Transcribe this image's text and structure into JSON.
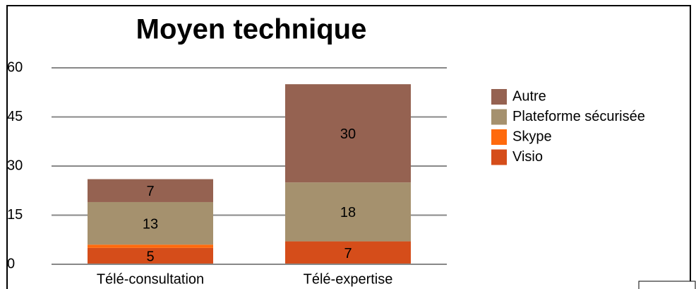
{
  "chart_data": {
    "type": "stacked_bar",
    "title": "Moyen technique",
    "categories": [
      "Télé-consultation",
      "Télé-expertise"
    ],
    "series": [
      {
        "name": "Visio",
        "color": "#d54d1a",
        "values": [
          5,
          7
        ],
        "data_labels": true
      },
      {
        "name": "Skype",
        "color": "#ff6a0d",
        "values": [
          1,
          0
        ],
        "data_labels": false
      },
      {
        "name": "Plateforme sécurisée",
        "color": "#a5916e",
        "values": [
          13,
          18
        ],
        "data_labels": true
      },
      {
        "name": "Autre",
        "color": "#956251",
        "values": [
          7,
          30
        ],
        "data_labels": true
      }
    ],
    "ylim": [
      0,
      60
    ],
    "yticks": [
      0,
      15,
      30,
      45,
      60
    ],
    "grid": true,
    "legend": "right"
  }
}
